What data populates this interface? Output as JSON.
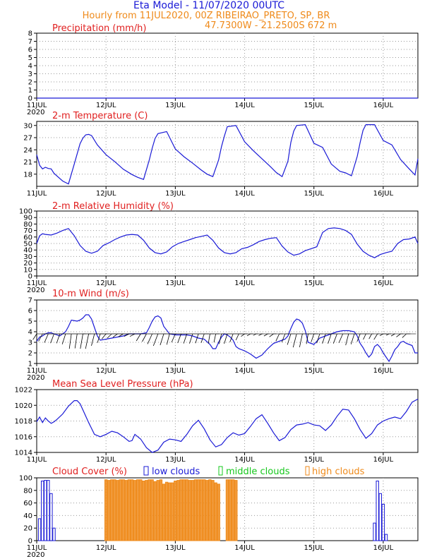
{
  "header": {
    "title": "Eta Model - 11/07/2020 00UTC",
    "subtitle": "Hourly from 11JUL2020, 00Z  RIBEIRAO_PRETO, SP, BR",
    "location": "47.7300W - 21.2500S     672  m"
  },
  "colors": {
    "title": "#1a1ad6",
    "subtitle": "#ef8a1a",
    "panel_title": "#e01f1f",
    "line": "#1a1ad6",
    "low_clouds": "#1a1ad6",
    "middle_clouds": "#16c81c",
    "high_clouds": "#ef8a1a",
    "wind_barb": "#000000"
  },
  "x_axis": {
    "ticks": [
      "11JUL",
      "12JUL",
      "13JUL",
      "14JUL",
      "15JUL",
      "16JUL"
    ],
    "year_label": "2020"
  },
  "chart_data": [
    {
      "type": "line",
      "title": "Precipitation (mm/h)",
      "ylim": [
        0,
        8
      ],
      "yticks": [
        0,
        1,
        2,
        3,
        4,
        5,
        6,
        7,
        8
      ],
      "grid": true,
      "series": [
        {
          "x": [
            0,
            132
          ],
          "y": [
            0,
            0
          ]
        }
      ]
    },
    {
      "type": "line",
      "title": "2-m Temperature (C)",
      "ylim": [
        15,
        31
      ],
      "yticks": [
        18,
        21,
        24,
        27,
        30
      ],
      "grid": true,
      "series": [
        {
          "x": [
            0,
            1,
            2,
            3,
            4,
            5,
            6,
            9,
            11,
            13,
            15,
            16,
            17,
            18,
            19,
            21,
            24,
            27,
            30,
            33,
            35,
            37,
            39,
            40,
            41,
            42,
            45,
            48,
            51,
            54,
            57,
            59,
            61,
            63,
            64,
            65,
            66,
            69,
            72,
            75,
            78,
            81,
            83,
            85,
            87,
            88,
            89,
            90,
            93,
            96,
            99,
            102,
            105,
            107,
            109,
            111,
            112,
            113,
            114,
            117,
            120,
            123,
            126,
            129,
            131,
            132
          ],
          "y": [
            22.8,
            20.2,
            19.3,
            19.7,
            19.4,
            19.3,
            18.2,
            16.3,
            15.6,
            20.5,
            25.5,
            26.9,
            27.7,
            27.8,
            27.5,
            25.2,
            22.8,
            21.1,
            19.2,
            17.9,
            17.2,
            16.7,
            21.5,
            24.4,
            26.8,
            28.0,
            28.5,
            24.2,
            22.3,
            20.7,
            19.0,
            18.0,
            17.4,
            21.5,
            24.8,
            27.4,
            29.7,
            30.0,
            26.0,
            23.8,
            21.8,
            19.8,
            18.4,
            17.4,
            21.2,
            25.8,
            28.6,
            30.0,
            30.2,
            25.6,
            24.6,
            20.5,
            18.7,
            18.3,
            17.6,
            22.4,
            25.8,
            28.8,
            30.2,
            30.2,
            26.3,
            25.2,
            21.6,
            19.3,
            17.8,
            21.8
          ]
        }
      ]
    },
    {
      "type": "line",
      "title": "2-m Relative Humidity (%)",
      "ylim": [
        0,
        100
      ],
      "yticks": [
        0,
        10,
        20,
        30,
        40,
        50,
        60,
        70,
        80,
        90,
        100
      ],
      "grid": true,
      "series": [
        {
          "x": [
            0,
            1,
            2,
            3,
            5,
            7,
            9,
            11,
            13,
            15,
            17,
            19,
            21,
            23,
            25,
            27,
            29,
            31,
            33,
            35,
            37,
            39,
            41,
            43,
            45,
            47,
            49,
            51,
            53,
            55,
            57,
            59,
            61,
            63,
            65,
            67,
            69,
            71,
            73,
            75,
            77,
            79,
            81,
            83,
            85,
            87,
            89,
            91,
            93,
            95,
            97,
            99,
            101,
            103,
            105,
            107,
            109,
            111,
            113,
            115,
            117,
            119,
            121,
            123,
            125,
            127,
            129,
            131,
            132
          ],
          "y": [
            50,
            62,
            65,
            64,
            63,
            66,
            70,
            73,
            62,
            47,
            38,
            35,
            38,
            47,
            51,
            56,
            60,
            63,
            64,
            63,
            55,
            43,
            36,
            34,
            37,
            45,
            50,
            53,
            56,
            59,
            61,
            63,
            55,
            43,
            36,
            34,
            36,
            42,
            44,
            48,
            53,
            56,
            58,
            59,
            46,
            37,
            32,
            34,
            39,
            42,
            45,
            67,
            73,
            74,
            73,
            70,
            64,
            49,
            38,
            32,
            28,
            33,
            36,
            38,
            50,
            56,
            57,
            60,
            50
          ]
        }
      ]
    },
    {
      "type": "line",
      "title": "10-m Wind (m/s)",
      "ylim": [
        1,
        7
      ],
      "yticks": [
        1,
        2,
        3,
        4,
        5,
        6,
        7
      ],
      "grid": true,
      "series": [
        {
          "x": [
            0,
            1,
            2,
            3,
            4,
            5,
            6,
            8,
            10,
            11,
            12,
            14,
            15,
            16,
            17,
            18,
            19,
            20,
            21,
            22,
            24,
            26,
            28,
            30,
            32,
            34,
            36,
            38,
            39,
            40,
            41,
            42,
            43,
            44,
            46,
            48,
            50,
            52,
            54,
            56,
            58,
            60,
            61,
            62,
            63,
            64,
            65,
            66,
            67,
            68,
            69,
            70,
            72,
            74,
            76,
            78,
            80,
            82,
            84,
            86,
            87,
            88,
            89,
            90,
            91,
            92,
            93,
            94,
            96,
            98,
            100,
            102,
            104,
            106,
            108,
            110,
            111,
            112,
            113,
            114,
            115,
            116,
            117,
            118,
            119,
            120,
            121,
            122,
            123,
            124,
            125,
            126,
            127,
            128,
            129,
            130,
            131,
            132
          ],
          "y": [
            3.1,
            3.5,
            3.6,
            3.8,
            3.9,
            3.9,
            3.8,
            3.6,
            4.0,
            4.5,
            5.1,
            5.0,
            5.1,
            5.3,
            5.6,
            5.6,
            5.2,
            4.4,
            3.6,
            3.2,
            3.3,
            3.4,
            3.5,
            3.6,
            3.8,
            3.8,
            3.8,
            3.9,
            4.4,
            5.0,
            5.4,
            5.5,
            5.3,
            4.5,
            3.8,
            3.7,
            3.7,
            3.7,
            3.6,
            3.4,
            3.3,
            2.8,
            2.4,
            2.4,
            3.0,
            3.5,
            3.8,
            3.7,
            3.5,
            3.2,
            2.6,
            2.4,
            2.2,
            1.9,
            1.5,
            1.8,
            2.4,
            2.9,
            3.1,
            3.3,
            3.6,
            4.3,
            4.9,
            5.2,
            5.1,
            4.8,
            4.1,
            3.0,
            2.8,
            3.4,
            3.6,
            3.8,
            4.0,
            4.1,
            4.1,
            4.0,
            3.6,
            2.9,
            2.5,
            2.0,
            1.6,
            1.9,
            2.6,
            2.8,
            2.5,
            2.0,
            1.6,
            1.2,
            1.7,
            2.3,
            2.6,
            3.0,
            3.1,
            2.9,
            2.8,
            2.7,
            2.0,
            2.0
          ]
        }
      ]
    },
    {
      "type": "line",
      "title": "Mean Sea Level Pressure (hPa)",
      "ylim": [
        1014,
        1022
      ],
      "yticks": [
        1014,
        1016,
        1018,
        1020,
        1022
      ],
      "grid": true,
      "series": [
        {
          "x": [
            0,
            1,
            2,
            3,
            4,
            5,
            6,
            7,
            9,
            11,
            13,
            14,
            15,
            16,
            18,
            20,
            22,
            24,
            26,
            28,
            30,
            32,
            33,
            34,
            36,
            38,
            40,
            42,
            44,
            46,
            48,
            50,
            52,
            54,
            56,
            58,
            60,
            62,
            64,
            66,
            68,
            70,
            72,
            74,
            76,
            78,
            80,
            82,
            84,
            86,
            88,
            90,
            92,
            94,
            96,
            98,
            100,
            102,
            104,
            106,
            108,
            110,
            112,
            114,
            116,
            118,
            120,
            122,
            124,
            126,
            128,
            130,
            132
          ],
          "y": [
            1017.9,
            1018.5,
            1017.8,
            1018.4,
            1018.0,
            1017.7,
            1017.9,
            1018.2,
            1018.9,
            1019.9,
            1020.6,
            1020.6,
            1020.2,
            1019.4,
            1017.8,
            1016.3,
            1016.0,
            1016.3,
            1016.7,
            1016.5,
            1016.0,
            1015.4,
            1015.5,
            1016.3,
            1015.7,
            1014.6,
            1014.0,
            1014.3,
            1015.3,
            1015.7,
            1015.6,
            1015.4,
            1016.3,
            1017.4,
            1018.1,
            1017.0,
            1015.6,
            1014.7,
            1015.0,
            1015.9,
            1016.5,
            1016.2,
            1016.4,
            1017.3,
            1018.3,
            1018.8,
            1017.7,
            1016.5,
            1015.5,
            1015.9,
            1016.9,
            1017.5,
            1017.6,
            1017.8,
            1017.5,
            1017.4,
            1016.8,
            1017.5,
            1018.6,
            1019.5,
            1019.4,
            1018.3,
            1016.9,
            1015.8,
            1016.4,
            1017.5,
            1018.0,
            1018.3,
            1018.5,
            1018.3,
            1019.2,
            1020.4,
            1020.8
          ]
        }
      ]
    },
    {
      "type": "bar",
      "title": "Cloud Cover (%)",
      "ylim": [
        0,
        100
      ],
      "yticks": [
        0,
        20,
        40,
        60,
        80,
        100
      ],
      "grid": true,
      "legend": [
        "low clouds",
        "middle clouds",
        "high clouds"
      ],
      "series": [
        {
          "name": "low clouds",
          "x": [
            1,
            2,
            3,
            4,
            5,
            6,
            117,
            118,
            119,
            120,
            121
          ],
          "values": [
            35,
            95,
            96,
            96,
            75,
            20,
            28,
            95,
            75,
            58,
            10
          ]
        },
        {
          "name": "high clouds",
          "x": [
            24,
            25,
            26,
            27,
            28,
            29,
            30,
            31,
            32,
            33,
            34,
            35,
            36,
            37,
            38,
            39,
            40,
            41,
            42,
            43,
            44,
            45,
            46,
            47,
            48,
            49,
            50,
            51,
            52,
            53,
            54,
            55,
            56,
            57,
            58,
            59,
            60,
            61,
            62,
            63,
            66,
            67,
            68,
            69
          ],
          "values": [
            97,
            96,
            97,
            97,
            96,
            97,
            97,
            96,
            97,
            97,
            96,
            97,
            97,
            95,
            96,
            97,
            97,
            94,
            96,
            97,
            90,
            93,
            92,
            92,
            95,
            96,
            97,
            97,
            97,
            96,
            96,
            97,
            97,
            97,
            97,
            96,
            97,
            96,
            92,
            90,
            97,
            97,
            97,
            96
          ]
        }
      ]
    }
  ]
}
